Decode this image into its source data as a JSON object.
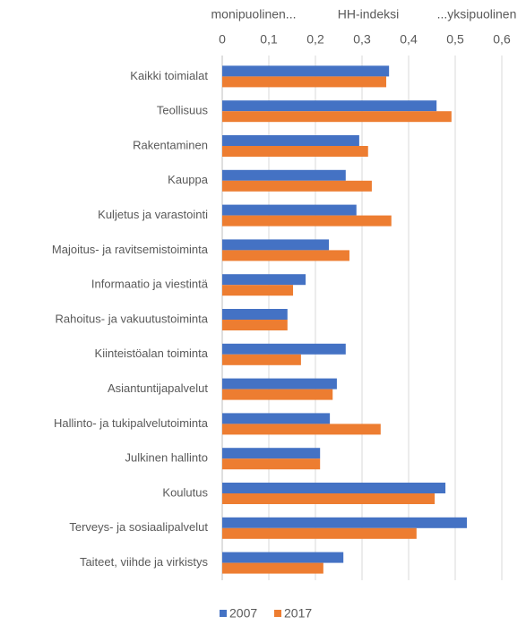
{
  "chart_data": {
    "type": "barh",
    "axis_titles": [
      "monipuolinen...",
      "HH-indeksi",
      "...yksipuolinen"
    ],
    "categories": [
      "Kaikki toimialat",
      "Teollisuus",
      "Rakentaminen",
      "Kauppa",
      "Kuljetus ja varastointi",
      "Majoitus- ja ravitsemistoiminta",
      "Informaatio ja viestintä",
      "Rahoitus- ja vakuutustoiminta",
      "Kiinteistöalan toiminta",
      "Asiantuntijapalvelut",
      "Hallinto- ja tukipalvelutoiminta",
      "Julkinen hallinto",
      "Koulutus",
      "Terveys- ja sosiaalipalvelut",
      "Taiteet, viihde ja virkistys"
    ],
    "series": [
      {
        "name": "2007",
        "color": "#4472c4",
        "values": [
          0.358,
          0.46,
          0.294,
          0.265,
          0.288,
          0.229,
          0.179,
          0.14,
          0.265,
          0.246,
          0.231,
          0.21,
          0.479,
          0.525,
          0.26
        ]
      },
      {
        "name": "2017",
        "color": "#ed7d31",
        "values": [
          0.352,
          0.492,
          0.313,
          0.321,
          0.363,
          0.273,
          0.152,
          0.14,
          0.169,
          0.237,
          0.34,
          0.21,
          0.456,
          0.417,
          0.217
        ]
      }
    ],
    "xlim": [
      0,
      0.6
    ],
    "xticks": [
      0,
      {
        "value": 0.1,
        "label": "0,1"
      },
      {
        "value": 0.2,
        "label": "0,2"
      },
      {
        "value": 0.3,
        "label": "0,3"
      },
      {
        "value": 0.4,
        "label": "0,4"
      },
      {
        "value": 0.5,
        "label": "0,5"
      },
      {
        "value": 0.6,
        "label": "0,6"
      }
    ],
    "grid": true,
    "legend": "bottom"
  }
}
